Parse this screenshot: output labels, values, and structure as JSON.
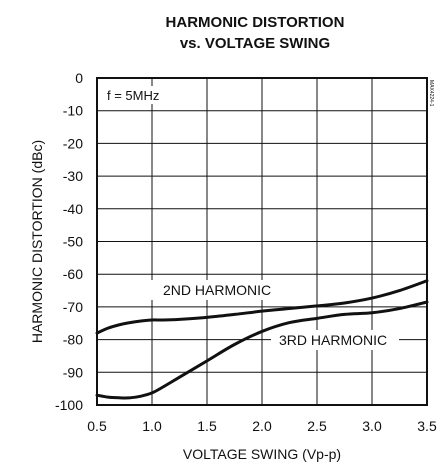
{
  "chart_data": {
    "type": "line",
    "title_line1": "HARMONIC DISTORTION",
    "title_line2": "vs. VOLTAGE SWING",
    "xlabel": "VOLTAGE SWING (Vp-p)",
    "ylabel": "HARMONIC DISTORTION (dBc)",
    "xlim": [
      0.5,
      3.5
    ],
    "ylim": [
      -100,
      0
    ],
    "x_ticks": [
      "0.5",
      "1.0",
      "1.5",
      "2.0",
      "2.5",
      "3.0",
      "3.5"
    ],
    "y_ticks": [
      "0",
      "-10",
      "-20",
      "-30",
      "-40",
      "-50",
      "-60",
      "-70",
      "-80",
      "-90",
      "-100"
    ],
    "grid": true,
    "condition_note": "f = 5MHz",
    "side_code": "MAX4224-1",
    "series": [
      {
        "name": "2ND HARMONIC",
        "x": [
          0.5,
          0.6,
          0.7,
          0.8,
          0.9,
          1.0,
          1.1,
          1.25,
          1.5,
          1.75,
          2.0,
          2.25,
          2.5,
          2.75,
          3.0,
          3.25,
          3.5
        ],
        "y": [
          -78,
          -76.5,
          -75.5,
          -74.8,
          -74.3,
          -74,
          -74,
          -73.8,
          -73.2,
          -72.3,
          -71.3,
          -70.5,
          -69.7,
          -68.8,
          -67.3,
          -65,
          -62
        ]
      },
      {
        "name": "3RD HARMONIC",
        "x": [
          0.5,
          0.6,
          0.7,
          0.8,
          0.9,
          1.0,
          1.1,
          1.25,
          1.5,
          1.75,
          2.0,
          2.25,
          2.5,
          2.75,
          3.0,
          3.25,
          3.5
        ],
        "y": [
          -97,
          -97.6,
          -97.8,
          -97.8,
          -97.3,
          -96.3,
          -94.5,
          -91.5,
          -86.5,
          -81.5,
          -77.5,
          -74.8,
          -73.5,
          -72.3,
          -71.8,
          -70.5,
          -68.5
        ]
      }
    ]
  }
}
